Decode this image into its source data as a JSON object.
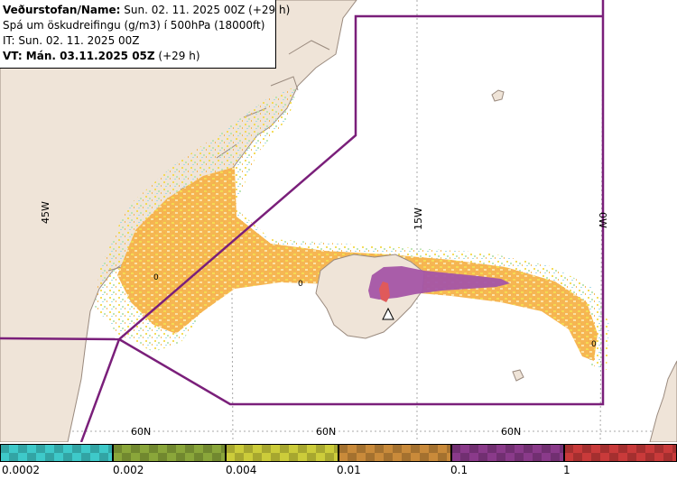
{
  "header": {
    "line1_prefix": "Veðurstofan/Name:",
    "line1_value": " Sun. 02. 11. 2025 00Z (+29 h)",
    "line2": "Spá um öskudreifingu (g/m3) í 500hPa (18000ft)",
    "line3": "IT: Sun. 02. 11. 2025 00Z",
    "line4_prefix": "VT: Mán. 03.11.2025 05Z",
    "line4_value": " (+29 h)"
  },
  "map": {
    "longitude_labels": [
      "45W",
      "15W",
      "0W"
    ],
    "latitude_labels": [
      "60N",
      "60N",
      "60N"
    ],
    "contour_labels": [
      "0",
      "0",
      "0"
    ],
    "colors": {
      "land": "#efe4d8",
      "coast": "#9a8a7e",
      "graticule": "#a8a8a8",
      "boundary": "#7a1f7a",
      "ash_low": "#c7e6b0",
      "ash_mid": "#f3d94a",
      "ash_orange": "#f6b24a",
      "ash_purple": "#a455a6",
      "ash_red": "#e05a5a"
    },
    "volcano_icon": "volcano-triangle-icon"
  },
  "legend": {
    "ticks": [
      "0.0002",
      "0.002",
      "0.004",
      "0.01",
      "0.1",
      "1"
    ],
    "colors": [
      "#3ec9c9",
      "#8aa63a",
      "#cccc3a",
      "#c98a3a",
      "#8a3a8a",
      "#c93a3a"
    ]
  }
}
